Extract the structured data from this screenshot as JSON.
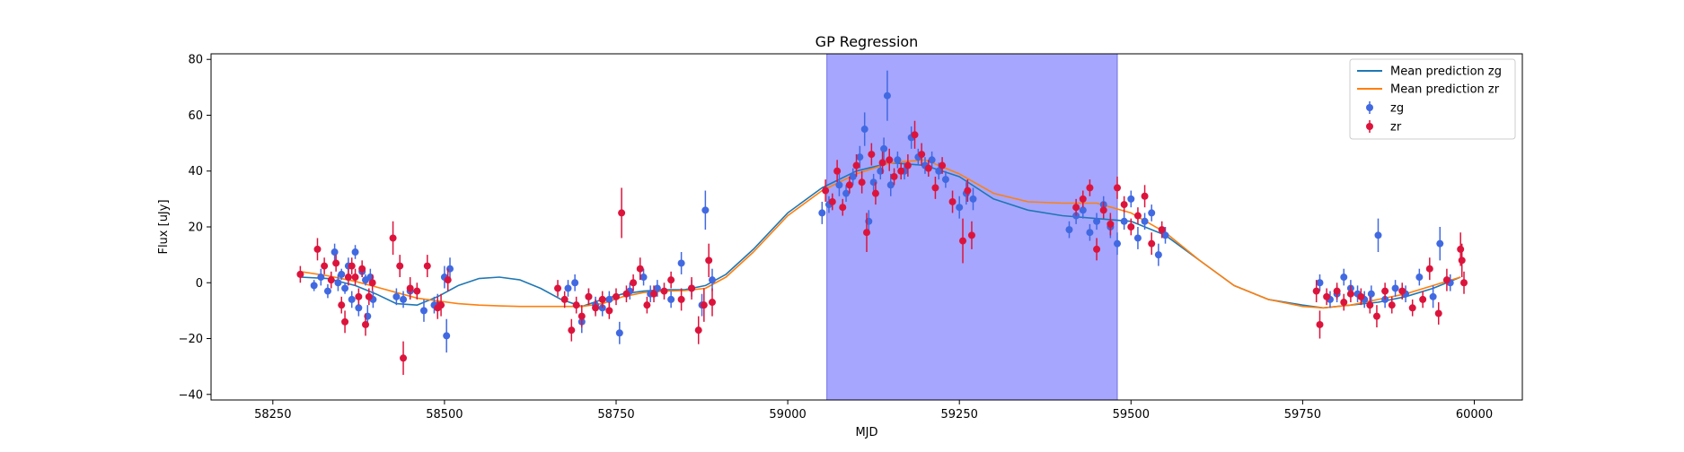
{
  "chart_data": {
    "type": "scatter",
    "title": "GP Regression",
    "xlabel": "MJD",
    "ylabel": "Flux [uJy]",
    "xlim": [
      58160,
      60070
    ],
    "ylim": [
      -42,
      82
    ],
    "xticks": [
      58250,
      58500,
      58750,
      59000,
      59250,
      59500,
      59750,
      60000
    ],
    "yticks": [
      -40,
      -20,
      0,
      20,
      40,
      60,
      80
    ],
    "grid": false,
    "legend_position": "top-right",
    "highlight_span": {
      "x0": 59057,
      "x1": 59480,
      "color": "#a6a6ff"
    },
    "lines": [
      {
        "name": "Mean prediction zg",
        "color": "#1f77b4",
        "x": [
          58290,
          58330,
          58370,
          58400,
          58430,
          58460,
          58490,
          58520,
          58550,
          58580,
          58610,
          58640,
          58670,
          58700,
          58730,
          58760,
          58790,
          58820,
          58850,
          58880,
          58910,
          58950,
          59000,
          59050,
          59100,
          59150,
          59200,
          59250,
          59300,
          59350,
          59400,
          59450,
          59500,
          59550,
          59600,
          59650,
          59700,
          59750,
          59780,
          59820,
          59860,
          59900,
          59940,
          59980
        ],
        "y": [
          2,
          1.5,
          -1,
          -4,
          -7.5,
          -8,
          -5,
          -1,
          1.5,
          2,
          1,
          -2,
          -6,
          -8.5,
          -6,
          -4,
          -3,
          -2.5,
          -2.5,
          -1,
          3,
          12,
          25,
          34,
          40,
          43,
          42,
          38,
          30,
          26,
          24,
          23,
          22,
          17,
          8,
          -1,
          -6,
          -8,
          -9,
          -8,
          -7,
          -5,
          -2,
          2
        ]
      },
      {
        "name": "Mean prediction zr",
        "color": "#ff7f0e",
        "x": [
          58290,
          58330,
          58370,
          58400,
          58430,
          58460,
          58490,
          58520,
          58550,
          58580,
          58610,
          58640,
          58670,
          58700,
          58730,
          58760,
          58790,
          58820,
          58850,
          58880,
          58910,
          58950,
          59000,
          59050,
          59100,
          59150,
          59200,
          59250,
          59300,
          59350,
          59400,
          59450,
          59500,
          59550,
          59600,
          59650,
          59700,
          59750,
          59780,
          59820,
          59860,
          59900,
          59940,
          59980
        ],
        "y": [
          4,
          2.5,
          0.5,
          -1.5,
          -3.5,
          -5.5,
          -6.5,
          -7.5,
          -8,
          -8.3,
          -8.5,
          -8.5,
          -8.5,
          -8.5,
          -7.5,
          -5,
          -3.5,
          -3,
          -2.8,
          -2,
          2,
          11,
          24,
          33,
          39,
          43,
          44,
          39,
          32,
          29,
          28.5,
          28.5,
          25,
          18,
          8,
          -1,
          -6,
          -8.5,
          -9,
          -8,
          -6,
          -4,
          -1,
          2
        ]
      }
    ],
    "series": [
      {
        "name": "zg",
        "color": "#4169e1",
        "points": [
          [
            58310,
            -1,
            2
          ],
          [
            58320,
            2,
            3
          ],
          [
            58330,
            -3,
            2.5
          ],
          [
            58340,
            11,
            3
          ],
          [
            58345,
            0,
            3
          ],
          [
            58350,
            3,
            2
          ],
          [
            58355,
            -2,
            2
          ],
          [
            58360,
            6,
            3
          ],
          [
            58365,
            -6,
            3
          ],
          [
            58370,
            11,
            2.5
          ],
          [
            58375,
            -9,
            3
          ],
          [
            58380,
            4,
            2
          ],
          [
            58385,
            1,
            2
          ],
          [
            58388,
            -12,
            4
          ],
          [
            58392,
            2,
            3
          ],
          [
            58396,
            -6,
            3
          ],
          [
            58430,
            -5,
            3
          ],
          [
            58440,
            -6,
            3
          ],
          [
            58450,
            -3,
            3
          ],
          [
            58470,
            -10,
            4
          ],
          [
            58485,
            -8,
            3
          ],
          [
            58490,
            -8,
            4
          ],
          [
            58500,
            2,
            4
          ],
          [
            58503,
            -19,
            6
          ],
          [
            58508,
            5,
            4
          ],
          [
            58680,
            -2,
            3
          ],
          [
            58690,
            0,
            3
          ],
          [
            58700,
            -14,
            4
          ],
          [
            58710,
            -5,
            3
          ],
          [
            58720,
            -8,
            3
          ],
          [
            58730,
            -9,
            3
          ],
          [
            58740,
            -6,
            3
          ],
          [
            58755,
            -18,
            4
          ],
          [
            58770,
            -3,
            3
          ],
          [
            58790,
            2,
            3
          ],
          [
            58800,
            -4,
            3
          ],
          [
            58810,
            -2,
            3
          ],
          [
            58830,
            -6,
            3
          ],
          [
            58845,
            7,
            4
          ],
          [
            58860,
            -2,
            3
          ],
          [
            58875,
            -8,
            4
          ],
          [
            58880,
            26,
            7
          ],
          [
            58890,
            1,
            4
          ],
          [
            59050,
            25,
            4
          ],
          [
            59060,
            28,
            3
          ],
          [
            59075,
            35,
            4
          ],
          [
            59085,
            32,
            3
          ],
          [
            59095,
            38,
            3
          ],
          [
            59105,
            45,
            4
          ],
          [
            59112,
            55,
            6
          ],
          [
            59118,
            22,
            4
          ],
          [
            59125,
            36,
            3
          ],
          [
            59135,
            40,
            3
          ],
          [
            59140,
            48,
            4
          ],
          [
            59145,
            67,
            9
          ],
          [
            59150,
            35,
            4
          ],
          [
            59160,
            44,
            3
          ],
          [
            59170,
            40,
            3
          ],
          [
            59180,
            52,
            4
          ],
          [
            59190,
            45,
            3
          ],
          [
            59200,
            42,
            3
          ],
          [
            59210,
            44,
            3
          ],
          [
            59220,
            40,
            3
          ],
          [
            59230,
            37,
            3
          ],
          [
            59250,
            27,
            4
          ],
          [
            59260,
            32,
            4
          ],
          [
            59270,
            30,
            4
          ],
          [
            59410,
            19,
            3
          ],
          [
            59420,
            24,
            3
          ],
          [
            59430,
            26,
            3
          ],
          [
            59440,
            18,
            3
          ],
          [
            59450,
            22,
            3
          ],
          [
            59460,
            28,
            3
          ],
          [
            59470,
            20,
            4
          ],
          [
            59480,
            14,
            4
          ],
          [
            59490,
            22,
            3
          ],
          [
            59500,
            30,
            3
          ],
          [
            59510,
            16,
            4
          ],
          [
            59520,
            22,
            3
          ],
          [
            59530,
            25,
            3
          ],
          [
            59540,
            10,
            4
          ],
          [
            59550,
            17,
            3
          ],
          [
            59775,
            0,
            3
          ],
          [
            59790,
            -6,
            3
          ],
          [
            59800,
            -4,
            3
          ],
          [
            59810,
            2,
            3
          ],
          [
            59820,
            -2,
            3
          ],
          [
            59830,
            -4,
            3
          ],
          [
            59840,
            -6,
            3
          ],
          [
            59850,
            -4,
            3
          ],
          [
            59860,
            17,
            6
          ],
          [
            59870,
            -6,
            3
          ],
          [
            59885,
            -2,
            3
          ],
          [
            59900,
            -4,
            3
          ],
          [
            59920,
            2,
            3
          ],
          [
            59940,
            -5,
            4
          ],
          [
            59950,
            14,
            6
          ],
          [
            59965,
            0,
            3
          ]
        ]
      },
      {
        "name": "zr",
        "color": "#dc143c",
        "points": [
          [
            58290,
            3,
            3
          ],
          [
            58315,
            12,
            4
          ],
          [
            58325,
            6,
            3
          ],
          [
            58335,
            1,
            3
          ],
          [
            58342,
            7,
            3
          ],
          [
            58350,
            -8,
            3
          ],
          [
            58355,
            -14,
            4
          ],
          [
            58360,
            2,
            3
          ],
          [
            58365,
            6,
            3
          ],
          [
            58370,
            2,
            3
          ],
          [
            58375,
            -5,
            3
          ],
          [
            58380,
            5,
            3
          ],
          [
            58385,
            -15,
            4
          ],
          [
            58390,
            -5,
            3
          ],
          [
            58395,
            0,
            3
          ],
          [
            58425,
            16,
            6
          ],
          [
            58435,
            6,
            4
          ],
          [
            58440,
            -27,
            6
          ],
          [
            58450,
            -2,
            4
          ],
          [
            58460,
            -3,
            3
          ],
          [
            58475,
            6,
            4
          ],
          [
            58490,
            -9,
            4
          ],
          [
            58495,
            -8,
            4
          ],
          [
            58505,
            1,
            4
          ],
          [
            58665,
            -2,
            3
          ],
          [
            58675,
            -6,
            3
          ],
          [
            58685,
            -17,
            4
          ],
          [
            58692,
            -8,
            3
          ],
          [
            58700,
            -12,
            4
          ],
          [
            58710,
            -5,
            3
          ],
          [
            58720,
            -9,
            3
          ],
          [
            58730,
            -6,
            3
          ],
          [
            58740,
            -10,
            3
          ],
          [
            58750,
            -5,
            3
          ],
          [
            58758,
            25,
            9
          ],
          [
            58765,
            -4,
            3
          ],
          [
            58775,
            0,
            3
          ],
          [
            58785,
            5,
            4
          ],
          [
            58795,
            -8,
            3
          ],
          [
            58805,
            -4,
            3
          ],
          [
            58820,
            -3,
            3
          ],
          [
            58830,
            1,
            3
          ],
          [
            58845,
            -6,
            4
          ],
          [
            58860,
            -2,
            4
          ],
          [
            58870,
            -17,
            5
          ],
          [
            58878,
            -8,
            6
          ],
          [
            58885,
            8,
            6
          ],
          [
            58890,
            -7,
            5
          ],
          [
            59055,
            33,
            4
          ],
          [
            59065,
            29,
            3
          ],
          [
            59072,
            40,
            4
          ],
          [
            59080,
            27,
            3
          ],
          [
            59090,
            35,
            3
          ],
          [
            59100,
            42,
            4
          ],
          [
            59108,
            36,
            4
          ],
          [
            59115,
            18,
            7
          ],
          [
            59122,
            46,
            4
          ],
          [
            59128,
            32,
            4
          ],
          [
            59138,
            43,
            4
          ],
          [
            59148,
            44,
            4
          ],
          [
            59155,
            38,
            3
          ],
          [
            59165,
            40,
            3
          ],
          [
            59175,
            42,
            4
          ],
          [
            59185,
            53,
            5
          ],
          [
            59195,
            46,
            4
          ],
          [
            59205,
            41,
            3
          ],
          [
            59215,
            34,
            4
          ],
          [
            59225,
            42,
            3
          ],
          [
            59240,
            29,
            4
          ],
          [
            59255,
            15,
            8
          ],
          [
            59262,
            33,
            4
          ],
          [
            59268,
            17,
            5
          ],
          [
            59420,
            27,
            3
          ],
          [
            59430,
            30,
            3
          ],
          [
            59440,
            34,
            3
          ],
          [
            59450,
            12,
            4
          ],
          [
            59460,
            26,
            3
          ],
          [
            59470,
            21,
            4
          ],
          [
            59480,
            34,
            4
          ],
          [
            59490,
            28,
            3
          ],
          [
            59500,
            20,
            3
          ],
          [
            59510,
            24,
            3
          ],
          [
            59520,
            31,
            4
          ],
          [
            59530,
            14,
            4
          ],
          [
            59545,
            19,
            3
          ],
          [
            59770,
            -3,
            4
          ],
          [
            59775,
            -15,
            5
          ],
          [
            59785,
            -5,
            3
          ],
          [
            59800,
            -3,
            3
          ],
          [
            59810,
            -7,
            3
          ],
          [
            59820,
            -4,
            3
          ],
          [
            59835,
            -5,
            3
          ],
          [
            59848,
            -8,
            3
          ],
          [
            59858,
            -12,
            4
          ],
          [
            59870,
            -3,
            3
          ],
          [
            59880,
            -8,
            3
          ],
          [
            59895,
            -3,
            3
          ],
          [
            59910,
            -9,
            3
          ],
          [
            59925,
            -6,
            3
          ],
          [
            59935,
            5,
            4
          ],
          [
            59948,
            -11,
            4
          ],
          [
            59960,
            1,
            4
          ],
          [
            59980,
            12,
            6
          ],
          [
            59982,
            8,
            6
          ],
          [
            59985,
            0,
            4
          ]
        ]
      }
    ]
  }
}
